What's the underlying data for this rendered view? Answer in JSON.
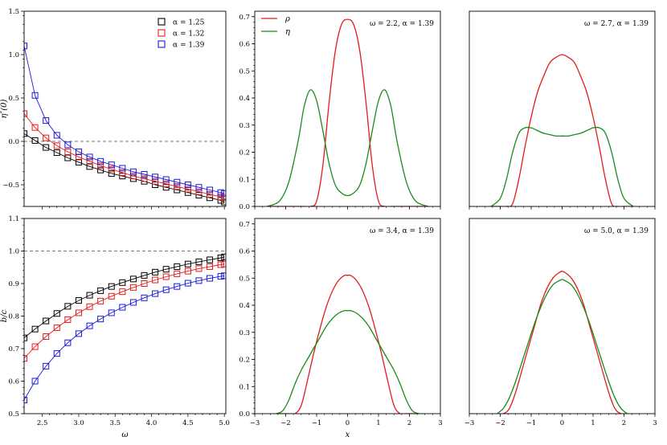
{
  "chart_data": [
    {
      "id": "p1",
      "type": "line",
      "xlabel": "",
      "ylabel": "η″(0)",
      "xlim": [
        2.25,
        5.02
      ],
      "ylim": [
        -0.75,
        1.5
      ],
      "xticks": [],
      "yticks": [
        "1.5",
        "1.0",
        "0.5",
        "0.0",
        "−0.5"
      ],
      "ytick_values": [
        1.5,
        1.0,
        0.5,
        0.0,
        -0.5
      ],
      "reference_line": 0.0,
      "legend": {
        "placement": "top-right",
        "entries": [
          "α = 1.25",
          "α = 1.32",
          "α = 1.39"
        ]
      },
      "x": [
        2.25,
        2.4,
        2.55,
        2.7,
        2.85,
        3.0,
        3.15,
        3.3,
        3.45,
        3.6,
        3.75,
        3.9,
        4.05,
        4.2,
        4.35,
        4.5,
        4.65,
        4.8,
        4.95,
        5.0
      ],
      "series": [
        {
          "name": "α = 1.25",
          "color": "#000000",
          "marker": "square",
          "values": [
            0.09,
            0.01,
            -0.07,
            -0.13,
            -0.19,
            -0.24,
            -0.29,
            -0.33,
            -0.37,
            -0.4,
            -0.43,
            -0.46,
            -0.5,
            -0.53,
            -0.56,
            -0.59,
            -0.62,
            -0.65,
            -0.68,
            -0.7
          ]
        },
        {
          "name": "α = 1.32",
          "color": "#e41a1c",
          "marker": "square",
          "values": [
            0.32,
            0.16,
            0.04,
            -0.05,
            -0.12,
            -0.18,
            -0.23,
            -0.28,
            -0.32,
            -0.36,
            -0.4,
            -0.43,
            -0.46,
            -0.49,
            -0.52,
            -0.55,
            -0.58,
            -0.61,
            -0.64,
            -0.65
          ]
        },
        {
          "name": "α = 1.39",
          "color": "#1a1adc",
          "marker": "square",
          "values": [
            1.1,
            0.53,
            0.24,
            0.07,
            -0.04,
            -0.12,
            -0.18,
            -0.23,
            -0.27,
            -0.31,
            -0.35,
            -0.38,
            -0.41,
            -0.44,
            -0.47,
            -0.5,
            -0.53,
            -0.56,
            -0.59,
            -0.6
          ]
        }
      ]
    },
    {
      "id": "p2",
      "type": "line",
      "annotation": "ω = 2.2, α = 1.39",
      "xlabel": "",
      "ylabel": "",
      "xlim": [
        -3,
        3
      ],
      "ylim": [
        0,
        0.72
      ],
      "yticks": [
        "0.0",
        "0.1",
        "0.2",
        "0.3",
        "0.4",
        "0.5",
        "0.6",
        "0.7"
      ],
      "ytick_values": [
        0,
        0.1,
        0.2,
        0.3,
        0.4,
        0.5,
        0.6,
        0.7
      ],
      "legend": {
        "placement": "top-left",
        "entries": [
          "ρ",
          "η"
        ]
      },
      "x": [
        -2.6,
        -2.2,
        -1.9,
        -1.6,
        -1.4,
        -1.2,
        -1.0,
        -0.8,
        -0.6,
        -0.4,
        -0.2,
        0.0,
        0.2,
        0.4,
        0.6,
        0.8,
        1.0,
        1.2,
        1.4,
        1.6,
        1.9,
        2.2,
        2.6
      ],
      "series": [
        {
          "name": "ρ",
          "color": "#e41a1c",
          "values": [
            0,
            0,
            0,
            0,
            0,
            0,
            0.02,
            0.15,
            0.38,
            0.57,
            0.67,
            0.69,
            0.67,
            0.57,
            0.38,
            0.15,
            0.02,
            0,
            0,
            0,
            0,
            0,
            0
          ]
        },
        {
          "name": "η",
          "color": "#1b8a1b",
          "values": [
            0,
            0.02,
            0.09,
            0.24,
            0.37,
            0.43,
            0.39,
            0.28,
            0.16,
            0.08,
            0.05,
            0.04,
            0.05,
            0.08,
            0.16,
            0.28,
            0.39,
            0.43,
            0.37,
            0.24,
            0.09,
            0.02,
            0
          ]
        }
      ]
    },
    {
      "id": "p3",
      "type": "line",
      "annotation": "ω = 2.7, α = 1.39",
      "xlabel": "",
      "ylabel": "",
      "xlim": [
        -3,
        3
      ],
      "ylim": [
        0,
        0.72
      ],
      "x": [
        -2.3,
        -2.0,
        -1.8,
        -1.6,
        -1.4,
        -1.2,
        -1.0,
        -0.8,
        -0.6,
        -0.4,
        -0.2,
        0.0,
        0.2,
        0.4,
        0.6,
        0.8,
        1.0,
        1.2,
        1.4,
        1.6,
        1.8,
        2.0,
        2.3
      ],
      "series": [
        {
          "name": "ρ",
          "color": "#e41a1c",
          "values": [
            0,
            0,
            0,
            0.01,
            0.1,
            0.22,
            0.33,
            0.42,
            0.48,
            0.53,
            0.55,
            0.56,
            0.55,
            0.53,
            0.48,
            0.42,
            0.33,
            0.22,
            0.1,
            0.01,
            0,
            0,
            0
          ]
        },
        {
          "name": "η",
          "color": "#1b8a1b",
          "values": [
            0,
            0.03,
            0.1,
            0.2,
            0.27,
            0.29,
            0.29,
            0.28,
            0.27,
            0.265,
            0.26,
            0.26,
            0.26,
            0.265,
            0.27,
            0.28,
            0.29,
            0.29,
            0.27,
            0.2,
            0.1,
            0.03,
            0
          ]
        }
      ]
    },
    {
      "id": "p4",
      "type": "line",
      "xlabel": "ω",
      "ylabel": "b/c",
      "xlim": [
        2.25,
        5.02
      ],
      "ylim": [
        0.5,
        1.1
      ],
      "xticks": [
        "2.5",
        "3.0",
        "3.5",
        "4.0",
        "4.5",
        "5.0"
      ],
      "xtick_values": [
        2.5,
        3.0,
        3.5,
        4.0,
        4.5,
        5.0
      ],
      "yticks": [
        "0.5",
        "0.6",
        "0.7",
        "0.8",
        "0.9",
        "1.0",
        "1.1"
      ],
      "ytick_values": [
        0.5,
        0.6,
        0.7,
        0.8,
        0.9,
        1.0,
        1.1
      ],
      "reference_line": 1.0,
      "x": [
        2.25,
        2.4,
        2.55,
        2.7,
        2.85,
        3.0,
        3.15,
        3.3,
        3.45,
        3.6,
        3.75,
        3.9,
        4.05,
        4.2,
        4.35,
        4.5,
        4.65,
        4.8,
        4.95,
        5.0
      ],
      "series": [
        {
          "name": "α = 1.25",
          "color": "#000000",
          "marker": "square",
          "values": [
            0.733,
            0.76,
            0.785,
            0.808,
            0.83,
            0.848,
            0.864,
            0.878,
            0.891,
            0.903,
            0.914,
            0.925,
            0.935,
            0.944,
            0.952,
            0.96,
            0.967,
            0.973,
            0.979,
            0.982
          ]
        },
        {
          "name": "α = 1.32",
          "color": "#e41a1c",
          "marker": "square",
          "values": [
            0.67,
            0.706,
            0.737,
            0.764,
            0.789,
            0.81,
            0.829,
            0.846,
            0.861,
            0.875,
            0.888,
            0.9,
            0.911,
            0.921,
            0.93,
            0.938,
            0.946,
            0.952,
            0.958,
            0.96
          ]
        },
        {
          "name": "α = 1.39",
          "color": "#1a1adc",
          "marker": "square",
          "values": [
            0.542,
            0.6,
            0.646,
            0.685,
            0.718,
            0.746,
            0.77,
            0.791,
            0.81,
            0.827,
            0.842,
            0.856,
            0.869,
            0.881,
            0.891,
            0.901,
            0.909,
            0.916,
            0.922,
            0.924
          ]
        }
      ]
    },
    {
      "id": "p5",
      "type": "line",
      "annotation": "ω = 3.4, α = 1.39",
      "xlabel": "x",
      "ylabel": "",
      "xlim": [
        -3,
        3
      ],
      "ylim": [
        0,
        0.72
      ],
      "xticks": [
        "−3",
        "−2",
        "−1",
        "0",
        "1",
        "2",
        "3"
      ],
      "xtick_values": [
        -3,
        -2,
        -1,
        0,
        1,
        2,
        3
      ],
      "yticks": [
        "0.0",
        "0.1",
        "0.2",
        "0.3",
        "0.4",
        "0.5",
        "0.6",
        "0.7"
      ],
      "ytick_values": [
        0,
        0.1,
        0.2,
        0.3,
        0.4,
        0.5,
        0.6,
        0.7
      ],
      "x": [
        -2.3,
        -2.1,
        -1.9,
        -1.7,
        -1.5,
        -1.3,
        -1.1,
        -0.9,
        -0.7,
        -0.5,
        -0.3,
        -0.1,
        0.0,
        0.1,
        0.3,
        0.5,
        0.7,
        0.9,
        1.1,
        1.3,
        1.5,
        1.7,
        1.9,
        2.1,
        2.3
      ],
      "series": [
        {
          "name": "ρ",
          "color": "#e41a1c",
          "values": [
            0,
            0,
            0,
            0,
            0.03,
            0.12,
            0.22,
            0.31,
            0.39,
            0.45,
            0.49,
            0.51,
            0.51,
            0.51,
            0.49,
            0.45,
            0.39,
            0.31,
            0.22,
            0.12,
            0.03,
            0,
            0,
            0,
            0
          ]
        },
        {
          "name": "η",
          "color": "#1b8a1b",
          "values": [
            0,
            0.01,
            0.05,
            0.11,
            0.16,
            0.2,
            0.24,
            0.28,
            0.32,
            0.35,
            0.37,
            0.38,
            0.38,
            0.38,
            0.37,
            0.35,
            0.32,
            0.28,
            0.24,
            0.2,
            0.16,
            0.11,
            0.05,
            0.01,
            0
          ]
        }
      ]
    },
    {
      "id": "p6",
      "type": "line",
      "annotation": "ω = 5.0, α = 1.39",
      "xlabel": "",
      "ylabel": "",
      "xlim": [
        -3,
        3
      ],
      "ylim": [
        0,
        0.72
      ],
      "xticks": [
        "−3",
        "−2",
        "−1",
        "0",
        "1",
        "2",
        "3"
      ],
      "xtick_values": [
        -3,
        -2,
        -1,
        0,
        1,
        2,
        3
      ],
      "x": [
        -2.1,
        -1.9,
        -1.7,
        -1.5,
        -1.3,
        -1.1,
        -0.9,
        -0.7,
        -0.5,
        -0.3,
        -0.1,
        0.0,
        0.1,
        0.3,
        0.5,
        0.7,
        0.9,
        1.1,
        1.3,
        1.5,
        1.7,
        1.9,
        2.1
      ],
      "series": [
        {
          "name": "ρ",
          "color": "#e41a1c",
          "values": [
            0,
            0,
            0.02,
            0.08,
            0.16,
            0.24,
            0.32,
            0.4,
            0.46,
            0.5,
            0.52,
            0.525,
            0.52,
            0.5,
            0.46,
            0.4,
            0.32,
            0.24,
            0.16,
            0.08,
            0.02,
            0,
            0
          ]
        },
        {
          "name": "η",
          "color": "#1b8a1b",
          "values": [
            0,
            0.02,
            0.06,
            0.12,
            0.19,
            0.26,
            0.33,
            0.39,
            0.44,
            0.475,
            0.49,
            0.495,
            0.49,
            0.475,
            0.44,
            0.39,
            0.33,
            0.26,
            0.19,
            0.12,
            0.06,
            0.02,
            0
          ]
        }
      ]
    }
  ]
}
